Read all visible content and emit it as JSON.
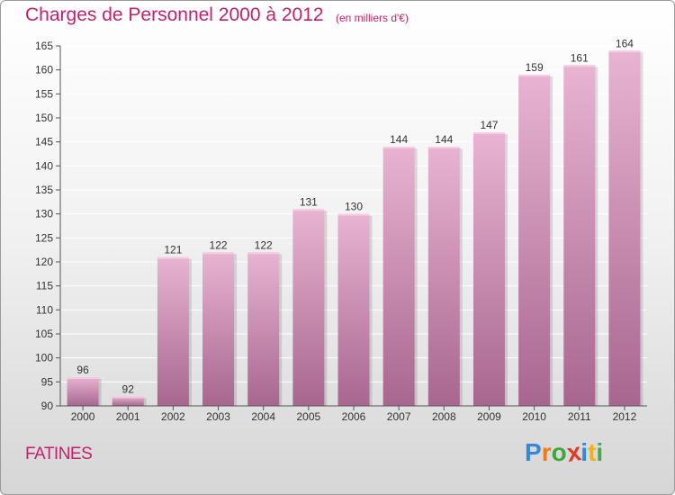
{
  "title": "Charges de Personnel 2000 à 2012",
  "subtitle": "(en milliers d'€)",
  "commune": "FATINES",
  "logo": {
    "letters": [
      "P",
      "r",
      "o",
      "x",
      "i",
      "t",
      "i"
    ],
    "colors": [
      "#3a86d6",
      "#f07a1a",
      "#3aa83a",
      "#e03a2a",
      "#2a8adf",
      "#f0b21a",
      "#4aa84a"
    ]
  },
  "colors": {
    "bar": "#d9a0c0",
    "bar_top": "#e8b4d2",
    "bar_bottom": "#a8668f",
    "text": "#c0226e",
    "grid": "#ffffff"
  },
  "chart_data": {
    "type": "bar",
    "title": "Charges de Personnel 2000 à 2012",
    "subtitle": "(en milliers d'€)",
    "xlabel": "",
    "ylabel": "",
    "categories": [
      "2000",
      "2001",
      "2002",
      "2003",
      "2004",
      "2005",
      "2006",
      "2007",
      "2008",
      "2009",
      "2010",
      "2011",
      "2012"
    ],
    "values": [
      96,
      92,
      121,
      122,
      122,
      131,
      130,
      144,
      144,
      147,
      159,
      161,
      164
    ],
    "ylim": [
      90,
      165
    ],
    "yticks": [
      90,
      95,
      100,
      105,
      110,
      115,
      120,
      125,
      130,
      135,
      140,
      145,
      150,
      155,
      160,
      165
    ],
    "grid": true,
    "legend": "none"
  }
}
